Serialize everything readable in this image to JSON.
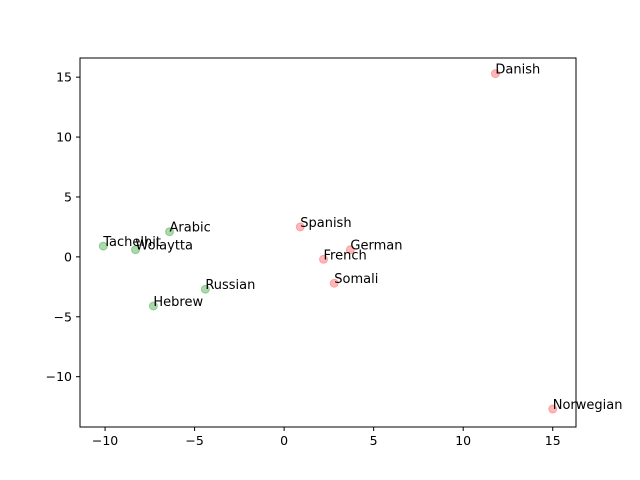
{
  "chart_data": {
    "type": "scatter",
    "title": "",
    "xlabel": "",
    "ylabel": "",
    "xlim": [
      -11.4,
      16.3
    ],
    "ylim": [
      -14.2,
      16.6
    ],
    "xticks": [
      -10,
      -5,
      0,
      5,
      10,
      15
    ],
    "yticks": [
      -10,
      -5,
      0,
      5,
      10,
      15
    ],
    "grid": false,
    "legend": "none",
    "series": [
      {
        "color": "#2ca02c",
        "points": [
          {
            "label": "Tachelhit",
            "x": -10.1,
            "y": 0.9
          },
          {
            "label": "Wolaytta",
            "x": -8.3,
            "y": 0.6
          },
          {
            "label": "Arabic",
            "x": -6.4,
            "y": 2.1
          },
          {
            "label": "Russian",
            "x": -4.4,
            "y": -2.7
          },
          {
            "label": "Hebrew",
            "x": -7.3,
            "y": -4.1
          }
        ]
      },
      {
        "color": "#ff4d4d",
        "points": [
          {
            "label": "Spanish",
            "x": 0.9,
            "y": 2.5
          },
          {
            "label": "German",
            "x": 3.7,
            "y": 0.6
          },
          {
            "label": "French",
            "x": 2.2,
            "y": -0.2
          },
          {
            "label": "Somali",
            "x": 2.8,
            "y": -2.2
          },
          {
            "label": "Danish",
            "x": 11.8,
            "y": 15.3
          },
          {
            "label": "Norwegian",
            "x": 15.0,
            "y": -12.7
          }
        ]
      }
    ]
  }
}
